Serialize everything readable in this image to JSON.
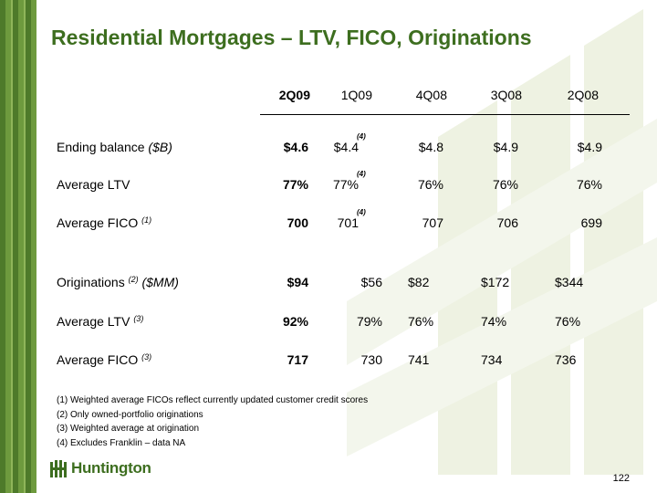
{
  "title": "Residential Mortgages – LTV, FICO, Originations",
  "columns": [
    "2Q09",
    "1Q09",
    "4Q08",
    "3Q08",
    "2Q08"
  ],
  "rows_top": [
    {
      "label": "Ending balance ",
      "label_italic": "($B)",
      "sup": "",
      "values": [
        "$4.6",
        "$4.4",
        "$4.8",
        "$4.9",
        "$4.9"
      ],
      "note": "(4)"
    },
    {
      "label": "Average LTV",
      "label_italic": "",
      "sup": "",
      "values": [
        "77%",
        "77%",
        "76%",
        "76%",
        "76%"
      ],
      "note": "(4)"
    },
    {
      "label": "Average FICO ",
      "label_italic": "",
      "sup": "(1)",
      "values": [
        "700",
        "701",
        "707",
        "706",
        "699"
      ],
      "note": "(4)"
    }
  ],
  "rows_bottom": [
    {
      "label": "Originations ",
      "label_italic": " ($MM)",
      "sup": "(2)",
      "values": [
        "$94",
        "$56",
        "$82",
        "$172",
        "$344"
      ]
    },
    {
      "label": "Average LTV ",
      "label_italic": "",
      "sup": "(3)",
      "values": [
        "92%",
        "79%",
        "76%",
        "74%",
        "76%"
      ]
    },
    {
      "label": "Average FICO ",
      "label_italic": "",
      "sup": "(3)",
      "values": [
        "717",
        "730",
        "741",
        "734",
        "736"
      ]
    }
  ],
  "footnotes": [
    "(1)  Weighted average FICOs reflect currently updated customer credit scores",
    "(2)  Only owned-portfolio originations",
    "(3)  Weighted average at origination",
    "(4)  Excludes Franklin – data NA"
  ],
  "logo": {
    "name": "Huntington",
    "icon": "huntington-logo-icon"
  },
  "page_number": "122",
  "colors": {
    "brand_green": "#3d6e1f",
    "watermark": "#eef2e2"
  }
}
